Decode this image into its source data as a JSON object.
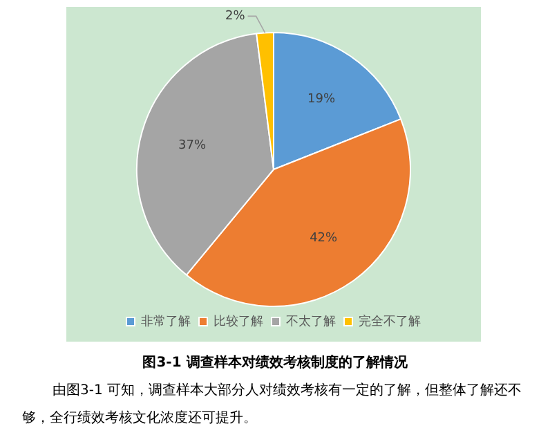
{
  "chart_data": {
    "type": "pie",
    "title": "图3-1 调查样本对绩效考核制度的了解情况",
    "categories": [
      "非常了解",
      "比较了解",
      "不太了解",
      "完全不了解"
    ],
    "values": [
      19,
      42,
      37,
      2
    ],
    "colors": [
      "#5b9bd5",
      "#ed7d31",
      "#a5a5a5",
      "#ffc000"
    ],
    "value_labels": [
      "19%",
      "42%",
      "37%",
      "2%"
    ],
    "legend": "bottom",
    "annotations": [
      "由图3-1 可知，调查样本大部分人对绩效考核有一定的了解，但整体了解还不够，全行绩效考核文化浓度还可提升。"
    ]
  }
}
